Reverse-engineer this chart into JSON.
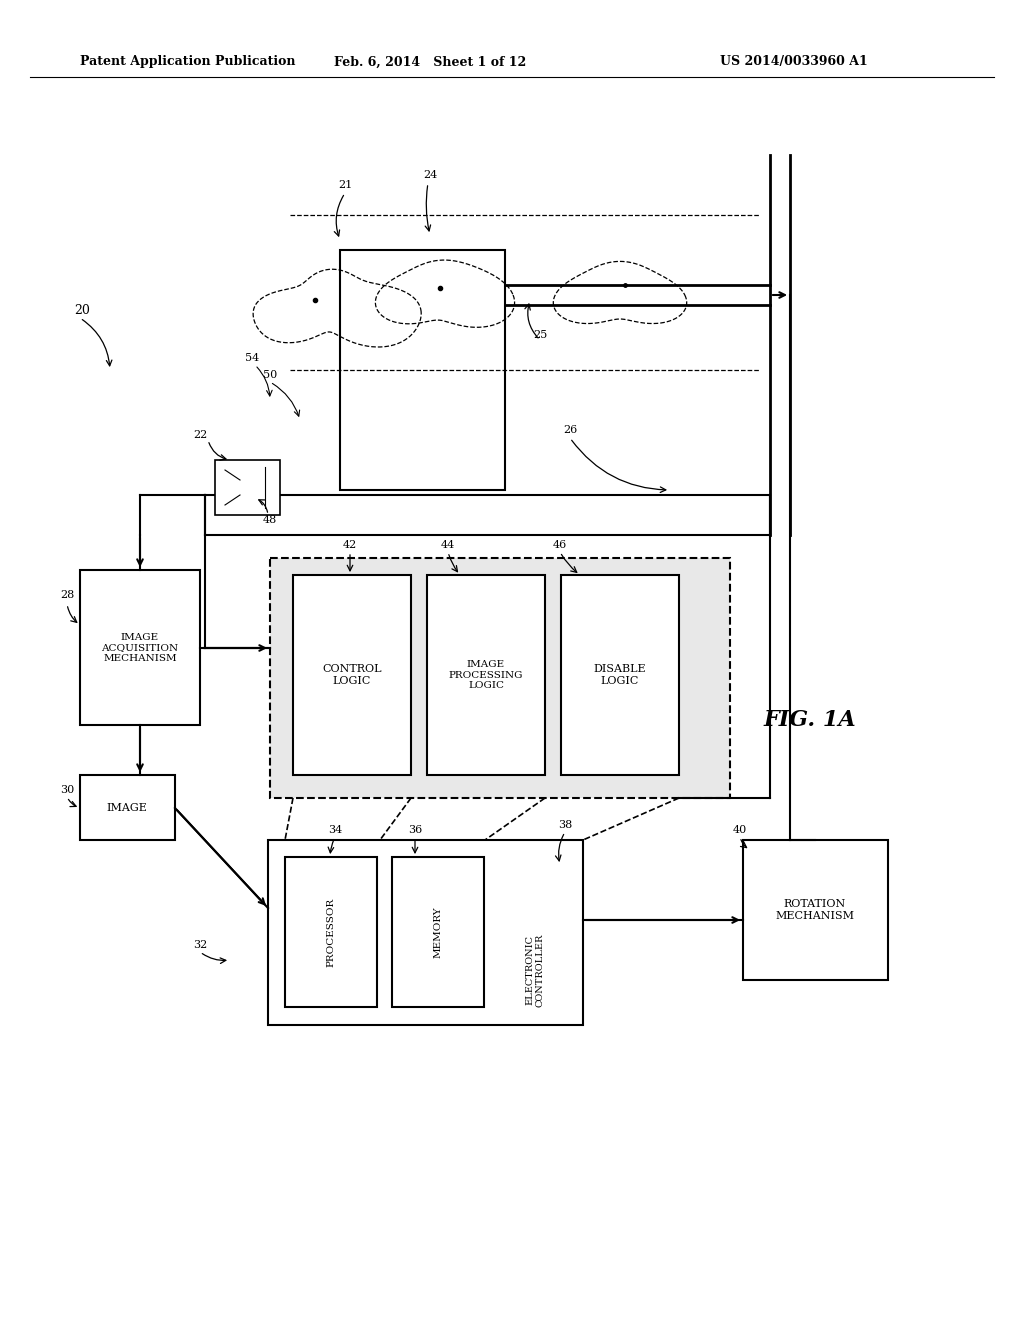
{
  "bg_color": "#ffffff",
  "header_left": "Patent Application Publication",
  "header_mid": "Feb. 6, 2014   Sheet 1 of 12",
  "header_right": "US 2014/0033960 A1",
  "fig_label": "FIG. 1A"
}
